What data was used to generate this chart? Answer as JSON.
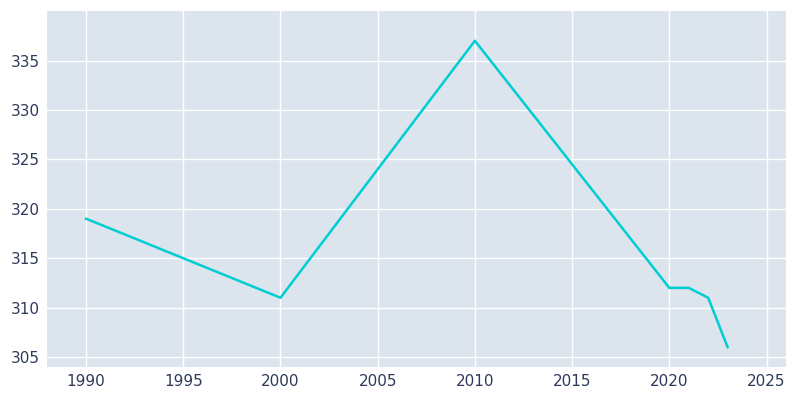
{
  "years": [
    1990,
    2000,
    2010,
    2020,
    2021,
    2022,
    2023
  ],
  "population": [
    319,
    311,
    337,
    312,
    312,
    311,
    306
  ],
  "line_color": "#00CED1",
  "axes_background_color": "#DCE4EE",
  "figure_background_color": "#FFFFFF",
  "grid_color": "#FFFFFF",
  "xlim": [
    1988,
    2026
  ],
  "ylim": [
    304,
    340
  ],
  "yticks": [
    305,
    310,
    315,
    320,
    325,
    330,
    335
  ],
  "xticks": [
    1990,
    1995,
    2000,
    2005,
    2010,
    2015,
    2020,
    2025
  ],
  "tick_label_color": "#2E3A59",
  "tick_fontsize": 11,
  "linewidth": 1.8
}
